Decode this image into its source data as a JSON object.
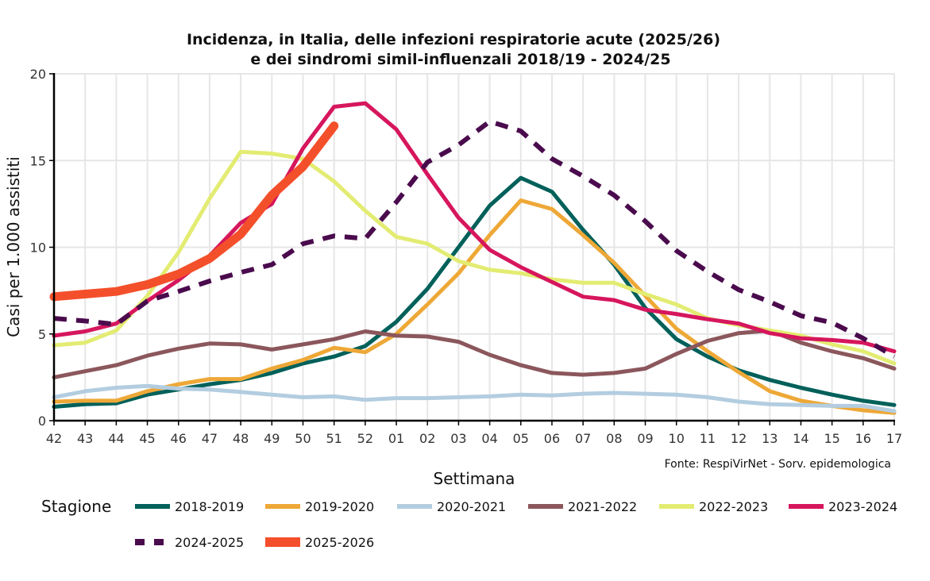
{
  "chart_data": {
    "type": "line",
    "title_line1": "Incidenza, in Italia, delle infezioni respiratorie acute (2025/26)",
    "title_line2": "e dei sindromi simil-influenzali 2018/19 - 2024/25",
    "xlabel": "Settimana",
    "ylabel": "Casi per 1.000 assistiti",
    "source": "Fonte: RespiVirNet - Sorv. epidemologica",
    "legend_title": "Stagione",
    "legend_position": "bottom",
    "grid": true,
    "ylim": [
      0,
      20
    ],
    "yticks": [
      "0",
      "5",
      "10",
      "15",
      "20"
    ],
    "ytick_values": [
      0,
      5,
      10,
      15,
      20
    ],
    "x": [
      "42",
      "43",
      "44",
      "45",
      "46",
      "47",
      "48",
      "49",
      "50",
      "51",
      "52",
      "01",
      "02",
      "03",
      "04",
      "05",
      "06",
      "07",
      "08",
      "09",
      "10",
      "11",
      "12",
      "13",
      "14",
      "15",
      "16",
      "17"
    ],
    "series": [
      {
        "name": "2018-2019",
        "color": "#00605a",
        "style": "solid",
        "values": [
          0.8,
          0.95,
          1.0,
          1.5,
          1.8,
          2.1,
          2.35,
          2.75,
          3.3,
          3.7,
          4.3,
          5.7,
          7.6,
          10.0,
          12.4,
          14.0,
          13.2,
          11.0,
          9.0,
          6.5,
          4.7,
          3.7,
          2.9,
          2.35,
          1.9,
          1.5,
          1.15,
          0.9
        ]
      },
      {
        "name": "2019-2020",
        "color": "#eea837",
        "style": "solid",
        "values": [
          1.1,
          1.15,
          1.15,
          1.7,
          2.1,
          2.4,
          2.4,
          3.0,
          3.5,
          4.2,
          3.95,
          5.0,
          6.7,
          8.5,
          10.7,
          12.7,
          12.2,
          10.7,
          9.1,
          7.2,
          5.3,
          4.0,
          2.8,
          1.7,
          1.15,
          0.85,
          0.6,
          0.45
        ]
      },
      {
        "name": "2020-2021",
        "color": "#b3cde0",
        "style": "solid",
        "values": [
          1.35,
          1.7,
          1.9,
          2.0,
          1.85,
          1.8,
          1.65,
          1.5,
          1.35,
          1.4,
          1.2,
          1.3,
          1.3,
          1.35,
          1.4,
          1.5,
          1.45,
          1.55,
          1.6,
          1.55,
          1.5,
          1.35,
          1.1,
          0.95,
          0.9,
          0.85,
          0.85,
          0.55
        ]
      },
      {
        "name": "2021-2022",
        "color": "#8b575c",
        "style": "solid",
        "values": [
          2.5,
          2.85,
          3.2,
          3.75,
          4.15,
          4.45,
          4.4,
          4.1,
          4.4,
          4.7,
          5.15,
          4.9,
          4.85,
          4.55,
          3.8,
          3.2,
          2.75,
          2.65,
          2.75,
          3.0,
          3.85,
          4.6,
          5.05,
          5.2,
          4.5,
          4.0,
          3.6,
          3.0
        ]
      },
      {
        "name": "2022-2023",
        "color": "#e3ec72",
        "style": "solid",
        "values": [
          4.35,
          4.5,
          5.2,
          7.2,
          9.7,
          12.8,
          15.5,
          15.4,
          15.1,
          13.8,
          12.1,
          10.6,
          10.2,
          9.2,
          8.7,
          8.5,
          8.15,
          7.95,
          7.95,
          7.3,
          6.7,
          5.9,
          5.5,
          5.2,
          4.9,
          4.4,
          4.0,
          3.3
        ]
      },
      {
        "name": "2023-2024",
        "color": "#d6165d",
        "style": "solid",
        "values": [
          4.9,
          5.15,
          5.6,
          6.9,
          8.1,
          9.5,
          11.4,
          12.5,
          15.7,
          18.1,
          18.3,
          16.8,
          14.2,
          11.7,
          9.85,
          8.85,
          8.0,
          7.15,
          6.95,
          6.4,
          6.15,
          5.85,
          5.6,
          5.05,
          4.75,
          4.65,
          4.5,
          4.0
        ]
      },
      {
        "name": "2024-2025",
        "color": "#4a0b4d",
        "style": "dashed",
        "values": [
          5.9,
          5.75,
          5.55,
          6.9,
          7.45,
          8.05,
          8.55,
          9.0,
          10.2,
          10.65,
          10.5,
          12.6,
          14.9,
          15.9,
          17.25,
          16.7,
          15.1,
          14.1,
          13.0,
          11.5,
          9.8,
          8.6,
          7.55,
          6.85,
          6.05,
          5.65,
          4.75,
          3.7
        ]
      },
      {
        "name": "2025-2026",
        "color": "#f44f2b",
        "style": "thick",
        "values": [
          7.15,
          7.3,
          7.45,
          7.85,
          8.45,
          9.35,
          10.75,
          13.0,
          14.65,
          17.0
        ]
      }
    ]
  }
}
